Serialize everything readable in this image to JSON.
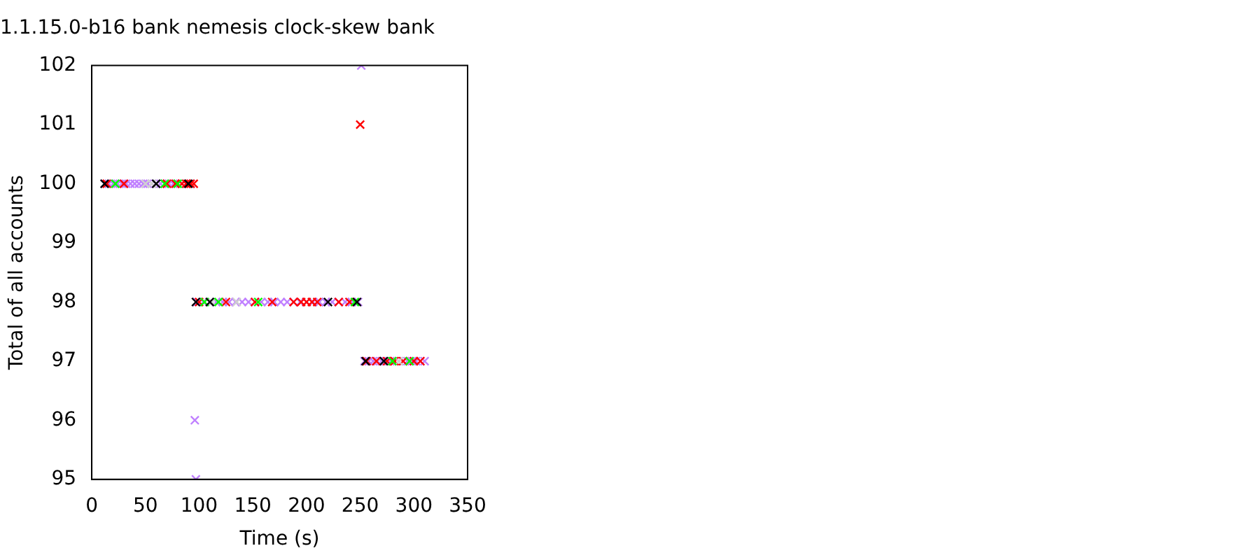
{
  "chart_data": {
    "type": "scatter",
    "title": "1.1.15.0-b16 bank nemesis clock-skew bank",
    "xlabel": "Time (s)",
    "ylabel": "Total of all accounts",
    "xlim": [
      0,
      350
    ],
    "xticks": [
      0,
      50,
      100,
      150,
      200,
      250,
      300,
      350
    ],
    "ylim": [
      95,
      102
    ],
    "yticks": [
      95,
      96,
      97,
      98,
      99,
      100,
      101,
      102
    ],
    "grid": false,
    "legend": false,
    "marker": "cross",
    "series": [
      {
        "color": "#000000",
        "x": [
          12,
          60,
          90,
          97,
          110,
          220,
          247,
          255,
          272
        ],
        "values": [
          100,
          100,
          100,
          98,
          98,
          98,
          98,
          97,
          97
        ]
      },
      {
        "color": "#00ff00",
        "x": [
          22,
          68,
          80,
          105,
          118,
          155,
          245,
          280,
          296
        ],
        "values": [
          100,
          100,
          100,
          98,
          98,
          98,
          98,
          97,
          97
        ]
      },
      {
        "color": "#d0d0d0",
        "x": [
          50,
          56,
          112,
          135,
          286
        ],
        "values": [
          100,
          100,
          98,
          98,
          97
        ]
      },
      {
        "color": "#ff0000",
        "x": [
          14,
          30,
          70,
          78,
          84,
          88,
          92,
          95,
          100,
          125,
          152,
          168,
          188,
          195,
          200,
          205,
          210,
          230,
          240,
          250,
          256,
          265,
          275,
          282,
          290,
          300,
          306
        ],
        "values": [
          100,
          100,
          100,
          100,
          100,
          100,
          100,
          100,
          98,
          98,
          98,
          98,
          98,
          98,
          98,
          98,
          98,
          98,
          98,
          101,
          97,
          97,
          97,
          97,
          97,
          97,
          97
        ]
      },
      {
        "color": "#c080ff",
        "x": [
          12,
          16,
          20,
          24,
          28,
          32,
          36,
          40,
          44,
          48,
          52,
          56,
          60,
          64,
          68,
          72,
          76,
          80,
          84,
          88,
          92,
          96,
          97,
          98,
          104,
          110,
          116,
          122,
          128,
          134,
          140,
          146,
          152,
          158,
          164,
          170,
          176,
          182,
          188,
          194,
          200,
          206,
          212,
          218,
          224,
          230,
          236,
          242,
          248,
          251,
          254,
          258,
          262,
          266,
          270,
          274,
          278,
          282,
          286,
          290,
          294,
          298,
          302,
          306,
          310
        ],
        "values": [
          100,
          100,
          100,
          100,
          100,
          100,
          100,
          100,
          100,
          100,
          100,
          100,
          100,
          100,
          100,
          100,
          100,
          100,
          100,
          100,
          100,
          96,
          95,
          98,
          98,
          98,
          98,
          98,
          98,
          98,
          98,
          98,
          98,
          98,
          98,
          98,
          98,
          98,
          98,
          98,
          98,
          98,
          98,
          98,
          98,
          98,
          98,
          98,
          98,
          102,
          97,
          97,
          97,
          97,
          97,
          97,
          97,
          97,
          97,
          97,
          97,
          97,
          97,
          97,
          97
        ]
      }
    ]
  }
}
